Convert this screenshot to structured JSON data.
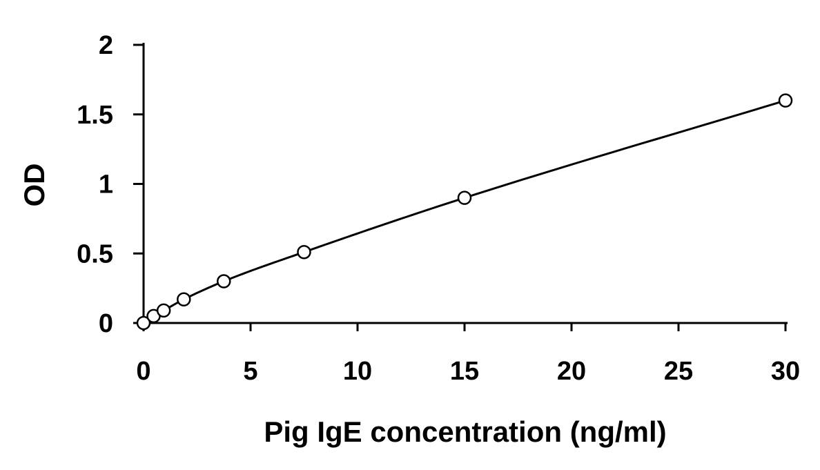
{
  "chart_data": {
    "type": "scatter",
    "title": "",
    "xlabel": "Pig IgE concentration (ng/ml)",
    "ylabel": "OD",
    "xlim": [
      0,
      30
    ],
    "ylim": [
      0,
      2
    ],
    "x_ticks": [
      "0",
      "5",
      "10",
      "15",
      "20",
      "25",
      "30"
    ],
    "y_ticks": [
      "0",
      "0.5",
      "1",
      "1.5",
      "2"
    ],
    "grid": false,
    "legend": "none",
    "series": [
      {
        "marker": "open-circle",
        "x": [
          0,
          0.47,
          0.94,
          1.88,
          3.75,
          7.5,
          15,
          30
        ],
        "y": [
          0.0,
          0.05,
          0.09,
          0.17,
          0.3,
          0.51,
          0.9,
          1.6
        ],
        "trendline": "smooth-fit"
      }
    ]
  }
}
